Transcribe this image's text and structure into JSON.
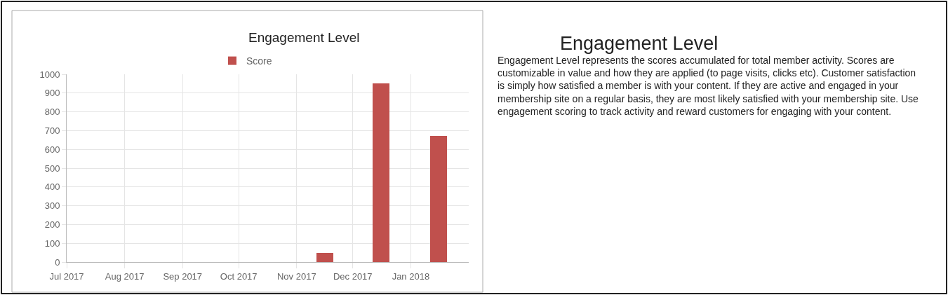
{
  "chart_data": [
    {
      "type": "bar",
      "title": "Engagement Level",
      "x": [
        "2017-07-16",
        "2017-08-16",
        "2017-09-16",
        "2017-10-16",
        "2017-11-16",
        "2017-12-16",
        "2018-01-16"
      ],
      "series": [
        {
          "name": "Score",
          "color": "#c0504d",
          "values": [
            0,
            0,
            0,
            0,
            50,
            950,
            670
          ]
        }
      ],
      "xlim": [
        "2017-07",
        "2018-02"
      ],
      "xticks": [
        {
          "value": "2017-07",
          "label": "Jul 2017"
        },
        {
          "value": "2017-08",
          "label": "Aug 2017"
        },
        {
          "value": "2017-09",
          "label": "Sep 2017"
        },
        {
          "value": "2017-10",
          "label": "Oct 2017"
        },
        {
          "value": "2017-11",
          "label": "Nov 2017"
        },
        {
          "value": "2017-12",
          "label": "Dec 2017"
        },
        {
          "value": "2018-01",
          "label": "Jan 2018"
        }
      ],
      "ylim": [
        0,
        1000
      ],
      "yticks": [
        0,
        100,
        200,
        300,
        400,
        500,
        600,
        700,
        800,
        900,
        1000
      ],
      "grid": true,
      "legend": "top"
    },
    {
      "type": "other",
      "title": "Engagement Level",
      "annotations": [
        "Engagement Level represents the scores accumulated for total member activity. Scores are customizable in value and how they are applied (to page visits, clicks etc). Customer satisfaction is simply how satisfied a member is with your content. If they are active and engaged in your membership site on a regular basis, they are most likely satisfied with your membership site. Use engagement scoring to track activity and reward customers for engaging with your content."
      ]
    }
  ]
}
